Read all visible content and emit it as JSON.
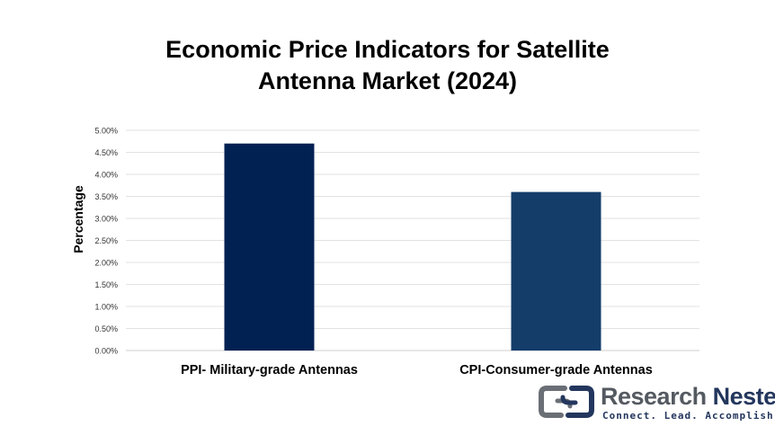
{
  "chart_data": {
    "type": "bar",
    "title": "Economic Price Indicators for  Satellite\nAntenna Market (2024)",
    "xlabel": "",
    "ylabel": "Percentage",
    "categories": [
      "PPI- Military-grade Antennas",
      "CPI-Consumer-grade Antennas"
    ],
    "values": [
      4.7,
      3.6
    ],
    "bar_colors": [
      "#012153",
      "#143d6a"
    ],
    "ylim": [
      0,
      5
    ],
    "yticks": [
      "0.00%",
      "0.50%",
      "1.00%",
      "1.50%",
      "2.00%",
      "2.50%",
      "3.00%",
      "3.50%",
      "4.00%",
      "4.50%",
      "5.00%"
    ],
    "grid": true,
    "legend": false
  },
  "logo": {
    "name_part1": "Research",
    "name_part2": "Nester",
    "tagline": "Connect. Lead. Accomplish"
  }
}
